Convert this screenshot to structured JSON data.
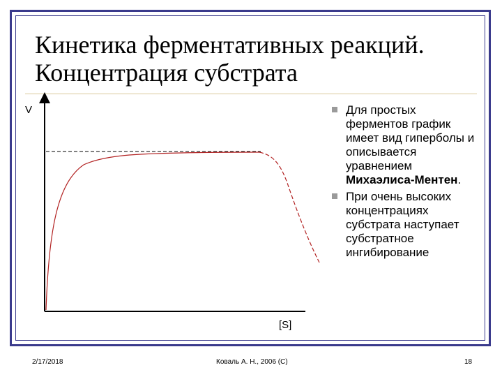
{
  "slide": {
    "title_line1": "Кинетика ферментативных реакций.",
    "title_line2": "Концентрация субстрата",
    "axis_y_label": "V",
    "axis_x_label": "[S]",
    "bullets": [
      {
        "text_before": "Для простых ферментов график имеет вид гиперболы и описывается уравнением ",
        "bold": "Михаэлиса-Ментен",
        "text_after": "."
      },
      {
        "text_before": "При очень высоких концентрациях субстрата наступает субстратное ингибирование",
        "bold": "",
        "text_after": ""
      }
    ],
    "footer_date": "2/17/2018",
    "footer_author": "Коваль А. Н., 2006 (С)",
    "footer_page": "18"
  },
  "colors": {
    "frame": "#3a3a8c",
    "curve": "#b22222",
    "bullet_marker": "#9a9a9a",
    "title_rule": "#d9c99a"
  }
}
